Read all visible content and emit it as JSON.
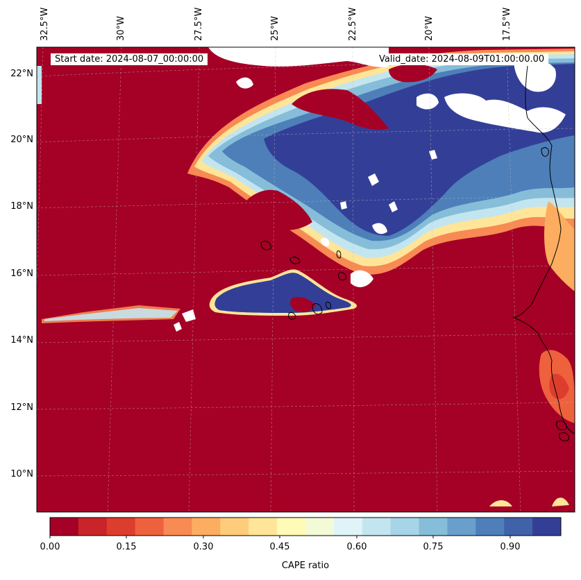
{
  "header": {
    "start_date": "Start date: 2024-08-07_00:00:00",
    "valid_date": "Valid_date: 2024-08-09T01:00:00.00"
  },
  "axes": {
    "lon_labels": [
      "32.5°W",
      "30°W",
      "27.5°W",
      "25°W",
      "22.5°W",
      "20°W",
      "17.5°W"
    ],
    "lat_labels": [
      "22°N",
      "20°N",
      "18°N",
      "16°N",
      "14°N",
      "12°N",
      "10°N"
    ]
  },
  "colorbar": {
    "title": "CAPE ratio",
    "ticks": [
      "0.00",
      "0.15",
      "0.30",
      "0.45",
      "0.60",
      "0.75",
      "0.90"
    ],
    "colors": [
      "#a50026",
      "#c8242a",
      "#dd3d2d",
      "#ee613d",
      "#f88a53",
      "#fdad60",
      "#fecc7b",
      "#fee598",
      "#fffab6",
      "#f3fad6",
      "#e0f3f8",
      "#c3e5f0",
      "#a5d5e7",
      "#86bdd9",
      "#699fcb",
      "#4e7fb9",
      "#3f62a8",
      "#333f97"
    ]
  },
  "map": {
    "ocean_color": "#a50026",
    "high_color": "#333f97"
  }
}
